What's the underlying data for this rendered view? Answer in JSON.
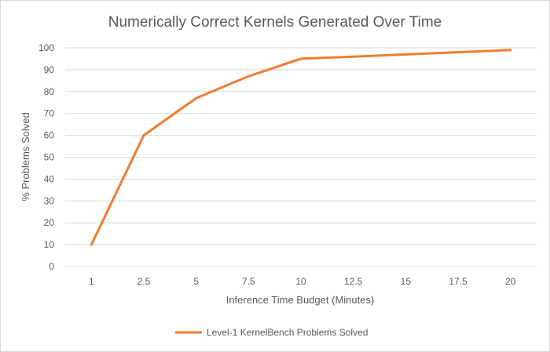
{
  "chart_data": {
    "type": "line",
    "title": "Numerically Correct Kernels Generated Over Time",
    "xlabel": "Inference Time Budget (Minutes)",
    "ylabel": "% Problems Solved",
    "categories": [
      "1",
      "2.5",
      "5",
      "7.5",
      "10",
      "12.5",
      "15",
      "17.5",
      "20"
    ],
    "series": [
      {
        "name": "Level-1 KernelBench Problems Solved",
        "values": [
          10,
          60,
          77,
          87,
          95,
          96,
          97,
          98,
          99
        ],
        "color": "#ED7D31"
      }
    ],
    "ylim": [
      0,
      100
    ],
    "yticks": [
      0,
      10,
      20,
      30,
      40,
      50,
      60,
      70,
      80,
      90,
      100
    ],
    "grid": true,
    "legend": "bottom"
  }
}
